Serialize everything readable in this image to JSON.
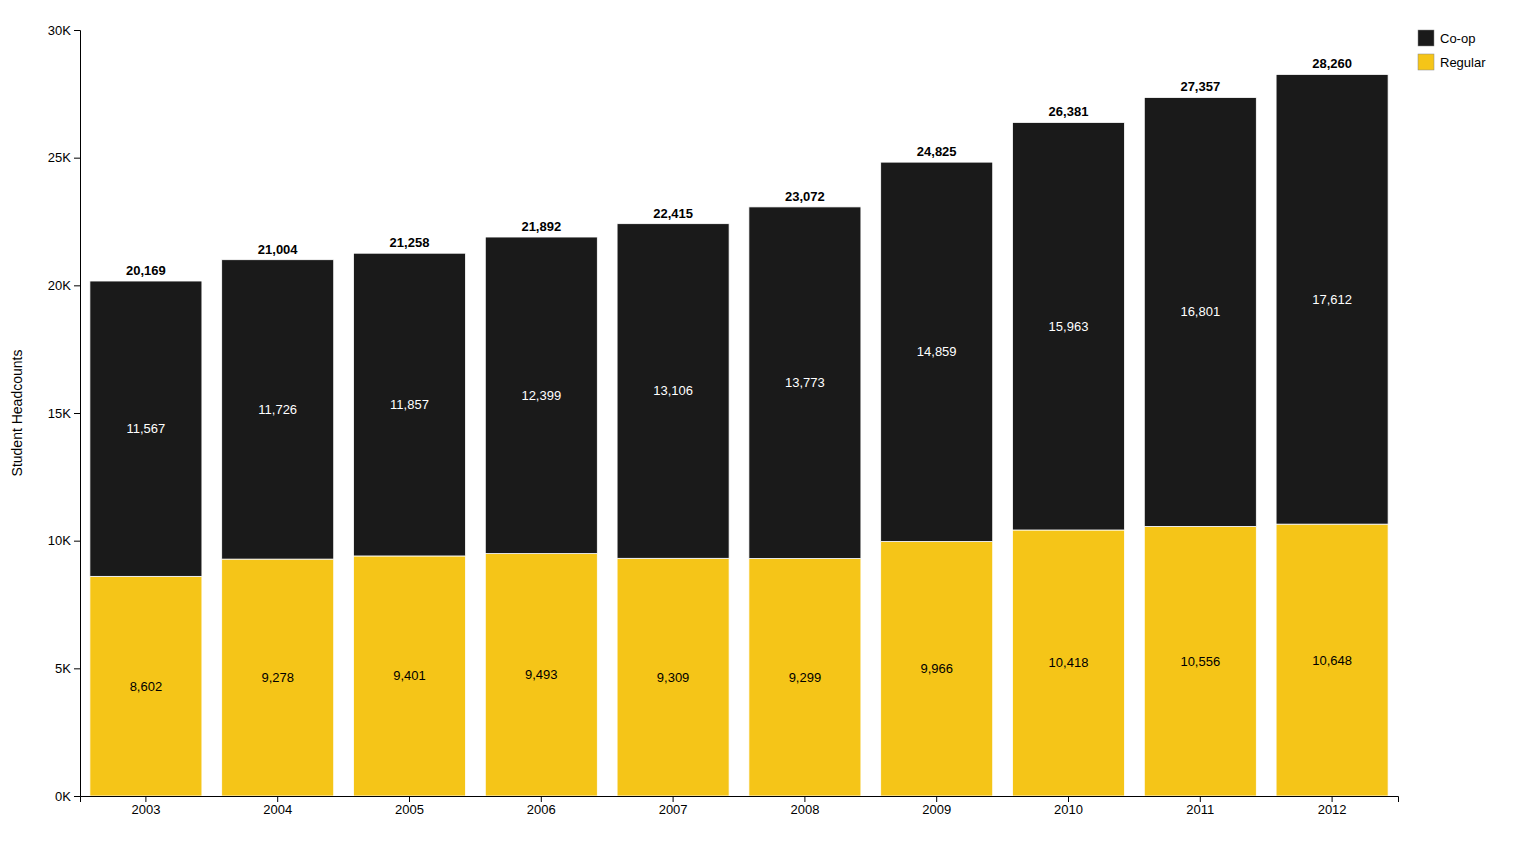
{
  "chart_data": {
    "type": "bar",
    "stacked": true,
    "categories": [
      "2003",
      "2004",
      "2005",
      "2006",
      "2007",
      "2008",
      "2009",
      "2010",
      "2011",
      "2012"
    ],
    "series": [
      {
        "name": "Regular",
        "color": "#F5C518",
        "values": [
          8602,
          9278,
          9401,
          9493,
          9309,
          9299,
          9966,
          10418,
          10556,
          10648
        ],
        "value_labels": [
          "8,602",
          "9,278",
          "9,401",
          "9,493",
          "9,309",
          "9,299",
          "9,966",
          "10,418",
          "10,556",
          "10,648"
        ]
      },
      {
        "name": "Co-op",
        "color": "#1a1a1a",
        "values": [
          11567,
          11726,
          11857,
          12399,
          13106,
          13773,
          14859,
          15963,
          16801,
          17612
        ],
        "value_labels": [
          "11,567",
          "11,726",
          "11,857",
          "12,399",
          "13,106",
          "13,773",
          "14,859",
          "15,963",
          "16,801",
          "17,612"
        ]
      }
    ],
    "totals": [
      20169,
      21004,
      21258,
      21892,
      22415,
      23072,
      24825,
      26381,
      27357,
      28260
    ],
    "total_labels": [
      "20,169",
      "21,004",
      "21,258",
      "21,892",
      "22,415",
      "23,072",
      "24,825",
      "26,381",
      "27,357",
      "28,260"
    ],
    "ylabel": "Student Headcounts",
    "ylim": [
      0,
      30000
    ],
    "yticks": [
      {
        "value": 0,
        "label": "0K"
      },
      {
        "value": 5000,
        "label": "5K"
      },
      {
        "value": 10000,
        "label": "10K"
      },
      {
        "value": 15000,
        "label": "15K"
      },
      {
        "value": 20000,
        "label": "20K"
      },
      {
        "value": 25000,
        "label": "25K"
      },
      {
        "value": 30000,
        "label": "30K"
      }
    ],
    "grid": false,
    "legend": "upper right",
    "data_labels": true
  }
}
